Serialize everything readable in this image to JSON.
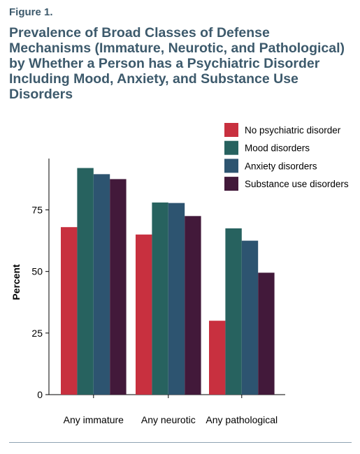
{
  "figure_label": "Figure 1.",
  "title": "Prevalence of Broad Classes of Defense Mechanisms (Immature, Neurotic, and Pathological) by Whether a Person has a Psychiatric Disorder Including Mood, Anxiety, and Substance Use Disorders",
  "chart_data": {
    "type": "bar",
    "title": "Prevalence of Broad Classes of Defense Mechanisms (Immature, Neurotic, and Pathological) by Whether a Person has a Psychiatric Disorder Including Mood, Anxiety, and Substance Use Disorders",
    "xlabel": "",
    "ylabel": "Percent",
    "ylim": [
      0,
      100
    ],
    "yticks": [
      0,
      25,
      50,
      75
    ],
    "grid": false,
    "legend_position": "top-right",
    "categories": [
      "Any immature",
      "Any neurotic",
      "Any pathological"
    ],
    "series": [
      {
        "name": "No psychiatric disorder",
        "color": "#c8303f",
        "values": [
          68,
          65,
          30
        ]
      },
      {
        "name": "Mood disorders",
        "color": "#27625f",
        "values": [
          92,
          78,
          67.5
        ]
      },
      {
        "name": "Anxiety disorders",
        "color": "#2d5470",
        "values": [
          89.5,
          77.8,
          62.5
        ]
      },
      {
        "name": "Substance use disorders",
        "color": "#42193a",
        "values": [
          87.5,
          72.5,
          49.5
        ]
      }
    ]
  }
}
